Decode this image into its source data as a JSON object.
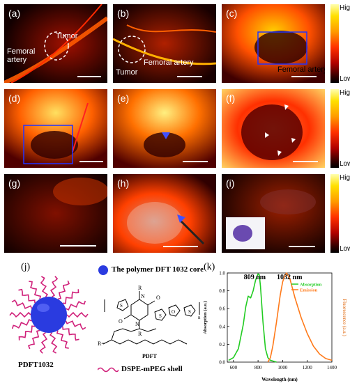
{
  "panels": {
    "a": {
      "label": "(a)",
      "femoral_artery": "Femoral\nartery",
      "tumor": "Tumor"
    },
    "b": {
      "label": "(b)",
      "tumor": "Tumor",
      "femoral_artery": "Femoral artery"
    },
    "c": {
      "label": "(c)",
      "femoral_artery": "Femoral artery"
    },
    "d": {
      "label": "(d)"
    },
    "e": {
      "label": "(e)"
    },
    "f": {
      "label": "(f)"
    },
    "g": {
      "label": "(g)"
    },
    "h": {
      "label": "(h)"
    },
    "i": {
      "label": "(i)"
    }
  },
  "colorbar": {
    "high": "High",
    "low": "Low"
  },
  "schematic": {
    "label": "(j)",
    "core_legend": "The polymer DFT 1032 core",
    "shell_legend": "DSPE-mPEG shell",
    "particle_name": "PDFT1032",
    "polymer_name": "PDFT",
    "r_group": "R=",
    "r_atom": "R",
    "n_atom": "N",
    "o_atom": "O",
    "s_atom": "S",
    "n_sub": "n",
    "core_color": "#2a3be0",
    "shell_color": "#d0207a"
  },
  "chart_data": {
    "type": "line",
    "label": "(k)",
    "xlabel": "Wavelength (nm)",
    "ylabel_left": "Absorption (a.u.)",
    "ylabel_right": "Fluorescence (a.u.)",
    "xlim": [
      550,
      1400
    ],
    "ylim": [
      0,
      1.0
    ],
    "x_ticks": [
      "600",
      "800",
      "1000",
      "1200",
      "1400"
    ],
    "y_ticks": [
      "0.0",
      "0.2",
      "0.4",
      "0.6",
      "0.8",
      "1.0"
    ],
    "peak_labels": [
      {
        "text": "809 nm",
        "x": 809
      },
      {
        "text": "1032 nm",
        "x": 1032
      }
    ],
    "legend_placement": "top-right",
    "series": [
      {
        "name": "Absorption",
        "color": "#22cc22",
        "x": [
          560,
          600,
          640,
          680,
          700,
          720,
          740,
          760,
          780,
          800,
          810,
          820,
          840,
          860,
          880,
          900,
          950
        ],
        "y": [
          0.02,
          0.05,
          0.15,
          0.42,
          0.62,
          0.74,
          0.72,
          0.8,
          0.92,
          0.99,
          0.98,
          0.85,
          0.45,
          0.15,
          0.05,
          0.02,
          0.0
        ]
      },
      {
        "name": "Emission",
        "color": "#ff7a1a",
        "x": [
          880,
          900,
          920,
          950,
          980,
          1000,
          1020,
          1032,
          1060,
          1100,
          1150,
          1200,
          1250,
          1300,
          1350,
          1400
        ],
        "y": [
          0.0,
          0.05,
          0.18,
          0.45,
          0.75,
          0.9,
          0.98,
          1.0,
          0.93,
          0.72,
          0.5,
          0.32,
          0.18,
          0.09,
          0.04,
          0.02
        ]
      }
    ]
  }
}
